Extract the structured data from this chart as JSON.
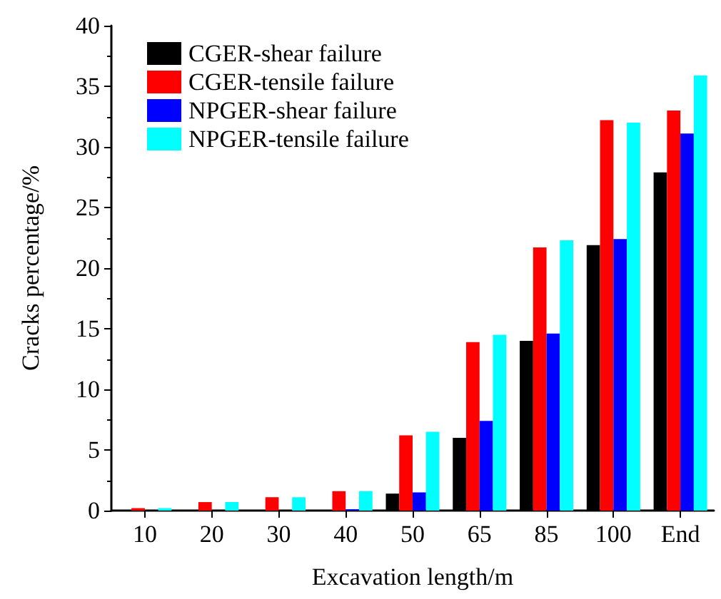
{
  "chart_data": {
    "type": "bar",
    "xlabel": "Excavation length/m",
    "ylabel": "Cracks percentage/%",
    "categories": [
      "10",
      "20",
      "30",
      "40",
      "50",
      "65",
      "85",
      "100",
      "End"
    ],
    "series": [
      {
        "name": "CGER-shear failure",
        "color": "#000000",
        "values": [
          0,
          0,
          0,
          0,
          1.4,
          6,
          14,
          21.9,
          27.9
        ]
      },
      {
        "name": "CGER-tensile failure",
        "color": "#ff0000",
        "values": [
          0.2,
          0.7,
          1.1,
          1.6,
          6.2,
          13.9,
          21.7,
          32.2,
          33
        ]
      },
      {
        "name": "NPGER-shear failure",
        "color": "#0000ff",
        "values": [
          0,
          0,
          0,
          0.1,
          1.5,
          7.4,
          14.6,
          22.4,
          31.1
        ]
      },
      {
        "name": "NPGER-tensile failure",
        "color": "#00ffff",
        "values": [
          0.2,
          0.7,
          1.1,
          1.6,
          6.5,
          14.5,
          22.3,
          32,
          35.9
        ]
      }
    ],
    "ylim": [
      0,
      40
    ],
    "yticks": [
      0,
      5,
      10,
      15,
      20,
      25,
      30,
      35,
      40
    ],
    "grid": false,
    "legend": "top left"
  }
}
